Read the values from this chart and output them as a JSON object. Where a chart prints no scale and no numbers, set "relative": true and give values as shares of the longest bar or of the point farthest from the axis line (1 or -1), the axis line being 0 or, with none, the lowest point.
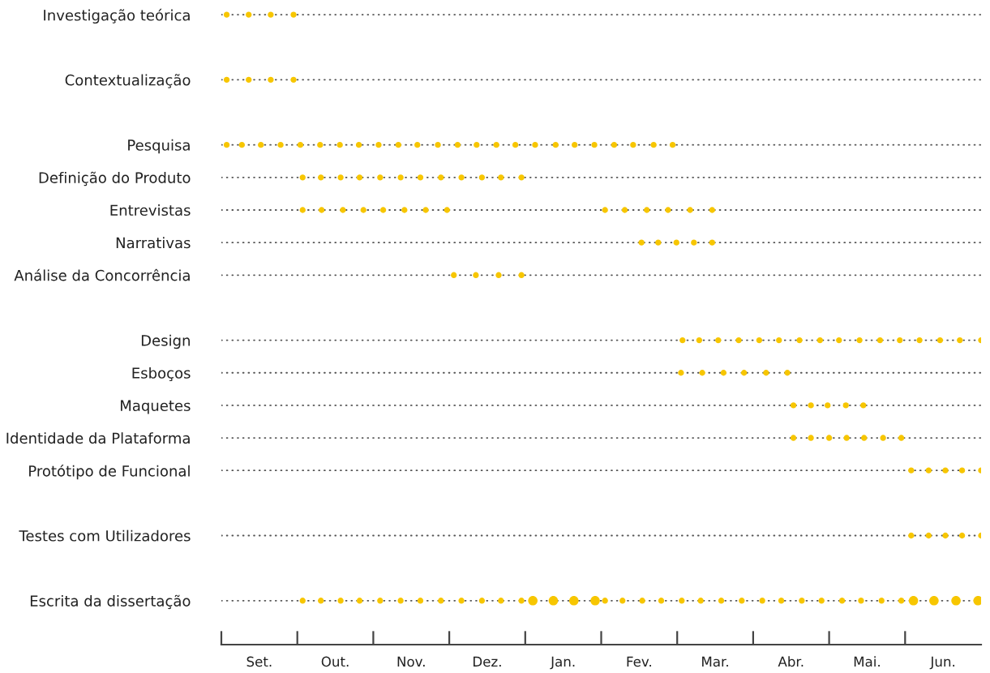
{
  "chart_data": {
    "type": "scatter",
    "orientation": "horizontal",
    "relative": true,
    "grid": "y",
    "line_style": "dotted",
    "marker": "circle",
    "color": "#f7c600",
    "categories": [
      "Investigação teórica",
      null,
      "Contextualização",
      null,
      "Pesquisa",
      "Definição do Produto",
      "Entrevistas",
      "Narrativas",
      "Análise da Concorrência",
      null,
      "Design",
      "Esboços",
      "Maquetes",
      "Identidade da Plataforma",
      "Protótipo de Funcional",
      null,
      "Testes com Utilizadores",
      null,
      "Escrita da dissertação"
    ],
    "annotations": [
      "Set.",
      "Out.",
      "Nov.",
      "Dez.",
      "Jan.",
      "Fev.",
      "Mar.",
      "Abr.",
      "Mai.",
      "Jun."
    ],
    "series": [
      {
        "values": [
          0.007,
          null,
          0.007,
          null,
          0.007,
          0.107,
          0.107,
          0.553,
          0.306,
          null,
          0.607,
          0.605,
          0.753,
          0.753,
          0.908,
          null,
          0.908,
          null,
          0.107
        ],
        "sizes": [
          0.4,
          null,
          0.4,
          null,
          0.4,
          0.4,
          0.4,
          0.4,
          0.4,
          null,
          0.4,
          0.4,
          0.4,
          0.4,
          0.4,
          null,
          0.4,
          null,
          0.4
        ]
      },
      {
        "values": [
          0.036,
          null,
          0.036,
          null,
          0.027,
          0.131,
          0.132,
          0.575,
          0.335,
          null,
          0.629,
          0.633,
          0.776,
          0.776,
          0.931,
          null,
          0.931,
          null,
          0.131
        ],
        "sizes": [
          0.4,
          null,
          0.4,
          null,
          0.4,
          0.4,
          0.4,
          0.4,
          0.4,
          null,
          0.4,
          0.4,
          0.4,
          0.4,
          0.4,
          null,
          0.4,
          null,
          0.4
        ]
      },
      {
        "values": [
          0.065,
          null,
          0.065,
          null,
          0.052,
          0.157,
          0.16,
          0.599,
          0.365,
          null,
          0.654,
          0.661,
          0.798,
          0.8,
          0.953,
          null,
          0.953,
          null,
          0.157
        ],
        "sizes": [
          0.4,
          null,
          0.4,
          null,
          0.4,
          0.4,
          0.4,
          0.4,
          0.4,
          null,
          0.4,
          0.4,
          0.4,
          0.4,
          0.4,
          null,
          0.4,
          null,
          0.4
        ]
      },
      {
        "values": [
          0.095,
          null,
          0.095,
          null,
          0.078,
          0.182,
          0.187,
          0.622,
          0.395,
          null,
          0.681,
          0.688,
          0.822,
          0.823,
          0.975,
          null,
          0.975,
          null,
          0.182
        ],
        "sizes": [
          0.4,
          null,
          0.4,
          null,
          0.4,
          0.4,
          0.4,
          0.4,
          0.4,
          null,
          0.4,
          0.4,
          0.4,
          0.4,
          0.4,
          null,
          0.4,
          null,
          0.4
        ]
      },
      {
        "values": [
          null,
          null,
          null,
          null,
          0.104,
          0.209,
          0.213,
          0.646,
          null,
          null,
          0.708,
          0.717,
          0.845,
          0.846,
          1,
          null,
          1,
          null,
          0.209
        ],
        "sizes": [
          null,
          null,
          null,
          null,
          0.4,
          0.4,
          0.4,
          0.4,
          null,
          null,
          0.4,
          0.4,
          0.4,
          0.4,
          0.4,
          null,
          0.4,
          null,
          0.4
        ]
      },
      {
        "values": [
          null,
          null,
          null,
          null,
          0.13,
          0.236,
          0.241,
          null,
          null,
          null,
          0.734,
          0.745,
          null,
          0.871,
          null,
          null,
          null,
          null,
          0.236
        ],
        "sizes": [
          null,
          null,
          null,
          null,
          0.4,
          0.4,
          0.4,
          null,
          null,
          null,
          0.4,
          0.4,
          null,
          0.4,
          null,
          null,
          null,
          null,
          0.4
        ]
      },
      {
        "values": [
          null,
          null,
          null,
          null,
          0.156,
          0.262,
          0.269,
          null,
          null,
          null,
          0.761,
          null,
          null,
          0.895,
          null,
          null,
          null,
          null,
          0.262
        ],
        "sizes": [
          null,
          null,
          null,
          null,
          0.4,
          0.4,
          0.4,
          null,
          null,
          null,
          0.4,
          null,
          null,
          0.4,
          null,
          null,
          null,
          null,
          0.4
        ]
      },
      {
        "values": [
          null,
          null,
          null,
          null,
          0.181,
          0.289,
          0.297,
          null,
          null,
          null,
          0.788,
          null,
          null,
          null,
          null,
          null,
          null,
          null,
          0.289
        ],
        "sizes": [
          null,
          null,
          null,
          null,
          0.4,
          0.4,
          0.4,
          null,
          null,
          null,
          0.4,
          null,
          null,
          null,
          null,
          null,
          null,
          null,
          0.4
        ]
      },
      {
        "values": [
          null,
          null,
          null,
          null,
          0.207,
          0.316,
          0.505,
          null,
          null,
          null,
          0.813,
          null,
          null,
          null,
          null,
          null,
          null,
          null,
          0.316
        ],
        "sizes": [
          null,
          null,
          null,
          null,
          0.4,
          0.4,
          0.4,
          null,
          null,
          null,
          0.4,
          null,
          null,
          null,
          null,
          null,
          null,
          null,
          0.4
        ]
      },
      {
        "values": [
          null,
          null,
          null,
          null,
          0.233,
          0.343,
          0.531,
          null,
          null,
          null,
          0.84,
          null,
          null,
          null,
          null,
          null,
          null,
          null,
          0.343
        ],
        "sizes": [
          null,
          null,
          null,
          null,
          0.4,
          0.4,
          0.4,
          null,
          null,
          null,
          0.4,
          null,
          null,
          null,
          null,
          null,
          null,
          null,
          0.4
        ]
      },
      {
        "values": [
          null,
          null,
          null,
          null,
          0.258,
          0.368,
          0.56,
          null,
          null,
          null,
          0.867,
          null,
          null,
          null,
          null,
          null,
          null,
          null,
          0.368
        ],
        "sizes": [
          null,
          null,
          null,
          null,
          0.4,
          0.4,
          0.4,
          null,
          null,
          null,
          0.4,
          null,
          null,
          null,
          null,
          null,
          null,
          null,
          0.4
        ]
      },
      {
        "values": [
          null,
          null,
          null,
          null,
          0.285,
          0.395,
          0.588,
          null,
          null,
          null,
          0.893,
          null,
          null,
          null,
          null,
          null,
          null,
          null,
          0.395
        ],
        "sizes": [
          null,
          null,
          null,
          null,
          0.4,
          0.4,
          0.4,
          null,
          null,
          null,
          0.4,
          null,
          null,
          null,
          null,
          null,
          null,
          null,
          0.4
        ]
      },
      {
        "values": [
          null,
          null,
          null,
          null,
          0.311,
          null,
          0.617,
          null,
          null,
          null,
          0.919,
          null,
          null,
          null,
          null,
          null,
          null,
          null,
          0.41
        ],
        "sizes": [
          null,
          null,
          null,
          null,
          0.4,
          null,
          0.4,
          null,
          null,
          null,
          0.4,
          null,
          null,
          null,
          null,
          null,
          null,
          null,
          1
        ]
      },
      {
        "values": [
          null,
          null,
          null,
          null,
          0.336,
          null,
          0.646,
          null,
          null,
          null,
          0.946,
          null,
          null,
          null,
          null,
          null,
          null,
          null,
          0.437
        ],
        "sizes": [
          null,
          null,
          null,
          null,
          0.4,
          null,
          0.4,
          null,
          null,
          null,
          0.4,
          null,
          null,
          null,
          null,
          null,
          null,
          null,
          1
        ]
      },
      {
        "values": [
          null,
          null,
          null,
          null,
          0.362,
          null,
          null,
          null,
          null,
          null,
          0.972,
          null,
          null,
          null,
          null,
          null,
          null,
          null,
          0.464
        ],
        "sizes": [
          null,
          null,
          null,
          null,
          0.4,
          null,
          null,
          null,
          null,
          null,
          0.4,
          null,
          null,
          null,
          null,
          null,
          null,
          null,
          1
        ]
      },
      {
        "values": [
          null,
          null,
          null,
          null,
          0.387,
          null,
          null,
          null,
          null,
          null,
          1,
          null,
          null,
          null,
          null,
          null,
          null,
          null,
          0.492
        ],
        "sizes": [
          null,
          null,
          null,
          null,
          0.4,
          null,
          null,
          null,
          null,
          null,
          0.4,
          null,
          null,
          null,
          null,
          null,
          null,
          null,
          1
        ]
      },
      {
        "values": [
          null,
          null,
          null,
          null,
          0.413,
          null,
          null,
          null,
          null,
          null,
          null,
          null,
          null,
          null,
          null,
          null,
          null,
          null,
          0.505
        ],
        "sizes": [
          null,
          null,
          null,
          null,
          0.4,
          null,
          null,
          null,
          null,
          null,
          null,
          null,
          null,
          null,
          null,
          null,
          null,
          null,
          0.4
        ]
      },
      {
        "values": [
          null,
          null,
          null,
          null,
          0.44,
          null,
          null,
          null,
          null,
          null,
          null,
          null,
          null,
          null,
          null,
          null,
          null,
          null,
          0.528
        ],
        "sizes": [
          null,
          null,
          null,
          null,
          0.4,
          null,
          null,
          null,
          null,
          null,
          null,
          null,
          null,
          null,
          null,
          null,
          null,
          null,
          0.4
        ]
      },
      {
        "values": [
          null,
          null,
          null,
          null,
          0.465,
          null,
          null,
          null,
          null,
          null,
          null,
          null,
          null,
          null,
          null,
          null,
          null,
          null,
          0.554
        ],
        "sizes": [
          null,
          null,
          null,
          null,
          0.4,
          null,
          null,
          null,
          null,
          null,
          null,
          null,
          null,
          null,
          null,
          null,
          null,
          null,
          0.4
        ]
      },
      {
        "values": [
          null,
          null,
          null,
          null,
          0.491,
          null,
          null,
          null,
          null,
          null,
          null,
          null,
          null,
          null,
          null,
          null,
          null,
          null,
          0.579
        ],
        "sizes": [
          null,
          null,
          null,
          null,
          0.4,
          null,
          null,
          null,
          null,
          null,
          null,
          null,
          null,
          null,
          null,
          null,
          null,
          null,
          0.4
        ]
      },
      {
        "values": [
          null,
          null,
          null,
          null,
          0.517,
          null,
          null,
          null,
          null,
          null,
          null,
          null,
          null,
          null,
          null,
          null,
          null,
          null,
          0.606
        ],
        "sizes": [
          null,
          null,
          null,
          null,
          0.4,
          null,
          null,
          null,
          null,
          null,
          null,
          null,
          null,
          null,
          null,
          null,
          null,
          null,
          0.4
        ]
      },
      {
        "values": [
          null,
          null,
          null,
          null,
          0.542,
          null,
          null,
          null,
          null,
          null,
          null,
          null,
          null,
          null,
          null,
          null,
          null,
          null,
          0.631
        ],
        "sizes": [
          null,
          null,
          null,
          null,
          0.4,
          null,
          null,
          null,
          null,
          null,
          null,
          null,
          null,
          null,
          null,
          null,
          null,
          null,
          0.4
        ]
      },
      {
        "values": [
          null,
          null,
          null,
          null,
          0.569,
          null,
          null,
          null,
          null,
          null,
          null,
          null,
          null,
          null,
          null,
          null,
          null,
          null,
          0.658
        ],
        "sizes": [
          null,
          null,
          null,
          null,
          0.4,
          null,
          null,
          null,
          null,
          null,
          null,
          null,
          null,
          null,
          null,
          null,
          null,
          null,
          0.4
        ]
      },
      {
        "values": [
          null,
          null,
          null,
          null,
          0.594,
          null,
          null,
          null,
          null,
          null,
          null,
          null,
          null,
          null,
          null,
          null,
          null,
          null,
          0.685
        ],
        "sizes": [
          null,
          null,
          null,
          null,
          0.4,
          null,
          null,
          null,
          null,
          null,
          null,
          null,
          null,
          null,
          null,
          null,
          null,
          null,
          0.4
        ]
      },
      {
        "values": [
          null,
          null,
          null,
          null,
          null,
          null,
          null,
          null,
          null,
          null,
          null,
          null,
          null,
          null,
          null,
          null,
          null,
          null,
          0.712
        ],
        "sizes": [
          null,
          null,
          null,
          null,
          null,
          null,
          null,
          null,
          null,
          null,
          null,
          null,
          null,
          null,
          null,
          null,
          null,
          null,
          0.4
        ]
      },
      {
        "values": [
          null,
          null,
          null,
          null,
          null,
          null,
          null,
          null,
          null,
          null,
          null,
          null,
          null,
          null,
          null,
          null,
          null,
          null,
          0.737
        ],
        "sizes": [
          null,
          null,
          null,
          null,
          null,
          null,
          null,
          null,
          null,
          null,
          null,
          null,
          null,
          null,
          null,
          null,
          null,
          null,
          0.4
        ]
      },
      {
        "values": [
          null,
          null,
          null,
          null,
          null,
          null,
          null,
          null,
          null,
          null,
          null,
          null,
          null,
          null,
          null,
          null,
          null,
          null,
          0.764
        ],
        "sizes": [
          null,
          null,
          null,
          null,
          null,
          null,
          null,
          null,
          null,
          null,
          null,
          null,
          null,
          null,
          null,
          null,
          null,
          null,
          0.4
        ]
      },
      {
        "values": [
          null,
          null,
          null,
          null,
          null,
          null,
          null,
          null,
          null,
          null,
          null,
          null,
          null,
          null,
          null,
          null,
          null,
          null,
          0.79
        ],
        "sizes": [
          null,
          null,
          null,
          null,
          null,
          null,
          null,
          null,
          null,
          null,
          null,
          null,
          null,
          null,
          null,
          null,
          null,
          null,
          0.4
        ]
      },
      {
        "values": [
          null,
          null,
          null,
          null,
          null,
          null,
          null,
          null,
          null,
          null,
          null,
          null,
          null,
          null,
          null,
          null,
          null,
          null,
          0.817
        ],
        "sizes": [
          null,
          null,
          null,
          null,
          null,
          null,
          null,
          null,
          null,
          null,
          null,
          null,
          null,
          null,
          null,
          null,
          null,
          null,
          0.4
        ]
      },
      {
        "values": [
          null,
          null,
          null,
          null,
          null,
          null,
          null,
          null,
          null,
          null,
          null,
          null,
          null,
          null,
          null,
          null,
          null,
          null,
          0.842
        ],
        "sizes": [
          null,
          null,
          null,
          null,
          null,
          null,
          null,
          null,
          null,
          null,
          null,
          null,
          null,
          null,
          null,
          null,
          null,
          null,
          0.4
        ]
      },
      {
        "values": [
          null,
          null,
          null,
          null,
          null,
          null,
          null,
          null,
          null,
          null,
          null,
          null,
          null,
          null,
          null,
          null,
          null,
          null,
          0.869
        ],
        "sizes": [
          null,
          null,
          null,
          null,
          null,
          null,
          null,
          null,
          null,
          null,
          null,
          null,
          null,
          null,
          null,
          null,
          null,
          null,
          0.4
        ]
      },
      {
        "values": [
          null,
          null,
          null,
          null,
          null,
          null,
          null,
          null,
          null,
          null,
          null,
          null,
          null,
          null,
          null,
          null,
          null,
          null,
          0.895
        ],
        "sizes": [
          null,
          null,
          null,
          null,
          null,
          null,
          null,
          null,
          null,
          null,
          null,
          null,
          null,
          null,
          null,
          null,
          null,
          null,
          0.4
        ]
      },
      {
        "values": [
          null,
          null,
          null,
          null,
          null,
          null,
          null,
          null,
          null,
          null,
          null,
          null,
          null,
          null,
          null,
          null,
          null,
          null,
          0.911
        ],
        "sizes": [
          null,
          null,
          null,
          null,
          null,
          null,
          null,
          null,
          null,
          null,
          null,
          null,
          null,
          null,
          null,
          null,
          null,
          null,
          1
        ]
      },
      {
        "values": [
          null,
          null,
          null,
          null,
          null,
          null,
          null,
          null,
          null,
          null,
          null,
          null,
          null,
          null,
          null,
          null,
          null,
          null,
          0.938
        ],
        "sizes": [
          null,
          null,
          null,
          null,
          null,
          null,
          null,
          null,
          null,
          null,
          null,
          null,
          null,
          null,
          null,
          null,
          null,
          null,
          1
        ]
      },
      {
        "values": [
          null,
          null,
          null,
          null,
          null,
          null,
          null,
          null,
          null,
          null,
          null,
          null,
          null,
          null,
          null,
          null,
          null,
          null,
          0.967
        ],
        "sizes": [
          null,
          null,
          null,
          null,
          null,
          null,
          null,
          null,
          null,
          null,
          null,
          null,
          null,
          null,
          null,
          null,
          null,
          null,
          1
        ]
      },
      {
        "values": [
          null,
          null,
          null,
          null,
          null,
          null,
          null,
          null,
          null,
          null,
          null,
          null,
          null,
          null,
          null,
          null,
          null,
          null,
          0.996
        ],
        "sizes": [
          null,
          null,
          null,
          null,
          null,
          null,
          null,
          null,
          null,
          null,
          null,
          null,
          null,
          null,
          null,
          null,
          null,
          null,
          1
        ]
      }
    ]
  }
}
